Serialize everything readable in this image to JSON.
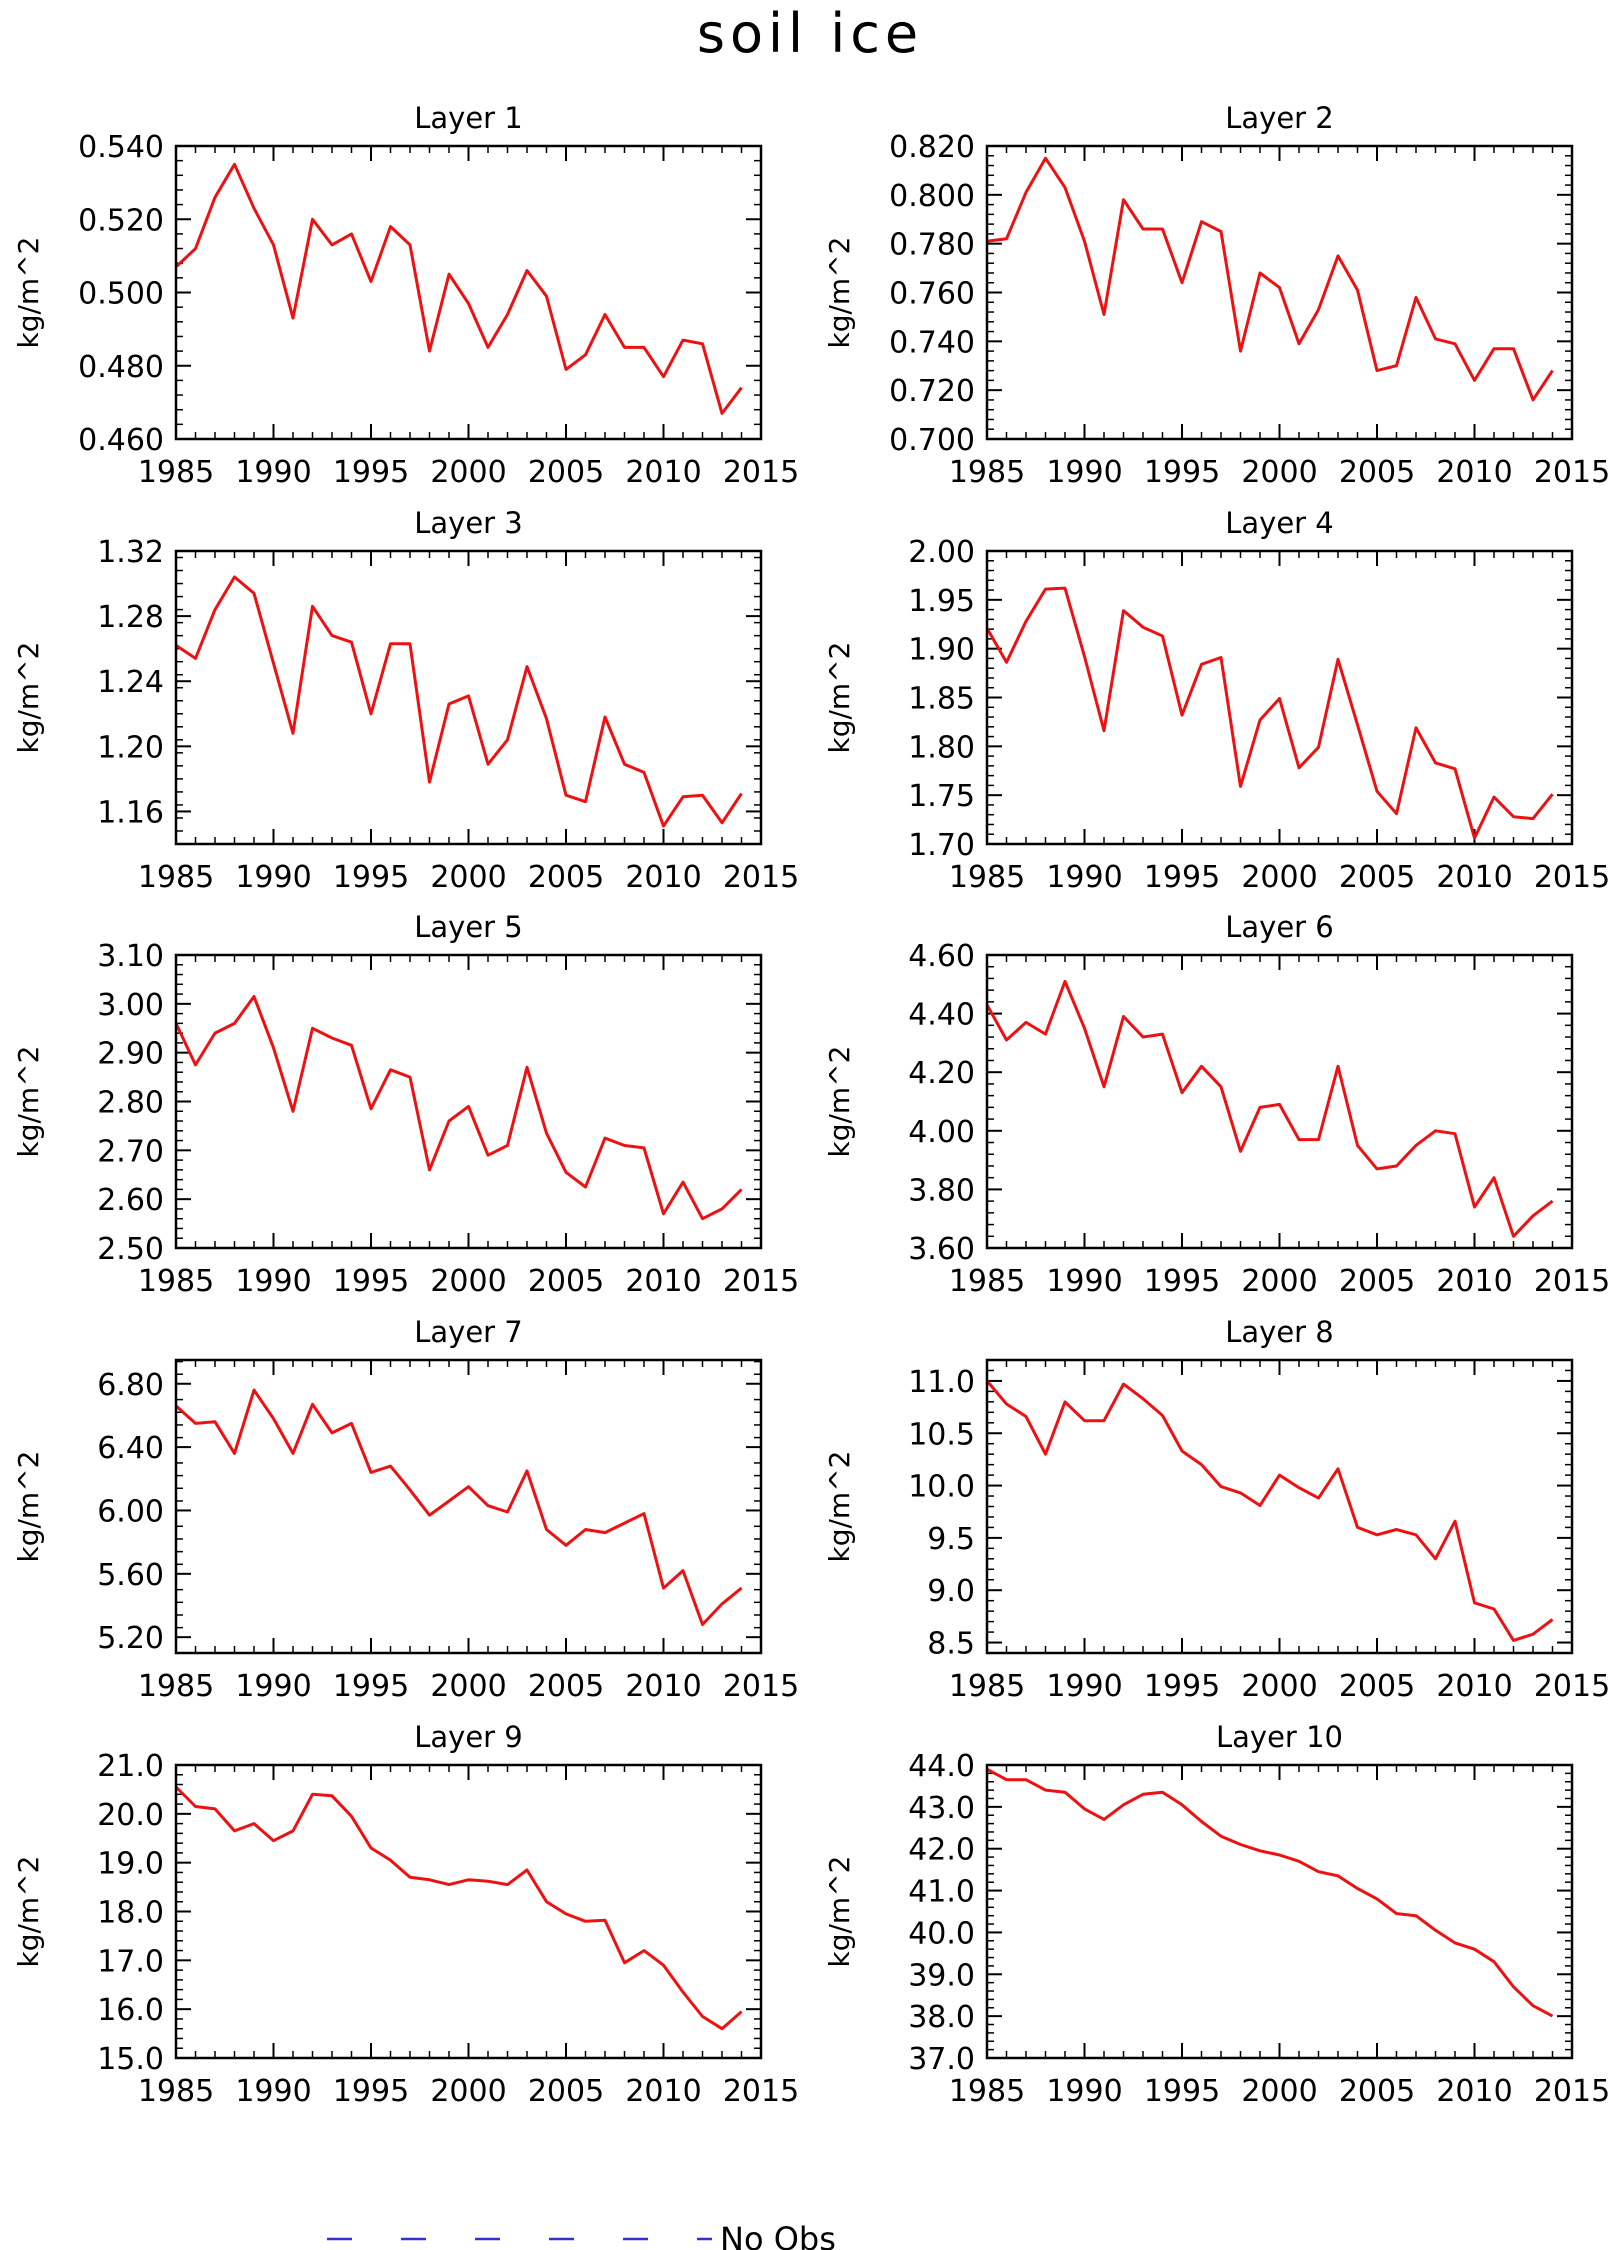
{
  "figure": {
    "title": "soil ice",
    "legend": {
      "label": "No Obs",
      "line_color": "#3333cc",
      "line_style": "dashed",
      "placement": "bottom-center"
    }
  },
  "colors": {
    "series": "#ee1111",
    "axis": "#000000"
  },
  "chart_data": [
    {
      "type": "line",
      "title": "Layer 1",
      "ylabel": "kg/m^2",
      "xlim": [
        1985,
        2015
      ],
      "ylim": [
        0.46,
        0.54
      ],
      "xticks": [
        "1985",
        "1990",
        "1995",
        "2000",
        "2005",
        "2010",
        "2015"
      ],
      "yticks": [
        "0.460",
        "0.480",
        "0.500",
        "0.520",
        "0.540"
      ],
      "x": [
        1985,
        1986,
        1987,
        1988,
        1989,
        1990,
        1991,
        1992,
        1993,
        1994,
        1995,
        1996,
        1997,
        1998,
        1999,
        2000,
        2001,
        2002,
        2003,
        2004,
        2005,
        2006,
        2007,
        2008,
        2009,
        2010,
        2011,
        2012,
        2013,
        2014
      ],
      "series": [
        {
          "values": [
            0.507,
            0.512,
            0.526,
            0.535,
            0.523,
            0.513,
            0.493,
            0.52,
            0.513,
            0.516,
            0.503,
            0.518,
            0.513,
            0.484,
            0.505,
            0.497,
            0.485,
            0.494,
            0.506,
            0.499,
            0.479,
            0.483,
            0.494,
            0.485,
            0.485,
            0.477,
            0.487,
            0.486,
            0.467,
            0.474
          ]
        }
      ]
    },
    {
      "type": "line",
      "title": "Layer 2",
      "ylabel": "kg/m^2",
      "xlim": [
        1985,
        2015
      ],
      "ylim": [
        0.7,
        0.82
      ],
      "xticks": [
        "1985",
        "1990",
        "1995",
        "2000",
        "2005",
        "2010",
        "2015"
      ],
      "yticks": [
        "0.700",
        "0.720",
        "0.740",
        "0.760",
        "0.780",
        "0.800",
        "0.820"
      ],
      "x": [
        1985,
        1986,
        1987,
        1988,
        1989,
        1990,
        1991,
        1992,
        1993,
        1994,
        1995,
        1996,
        1997,
        1998,
        1999,
        2000,
        2001,
        2002,
        2003,
        2004,
        2005,
        2006,
        2007,
        2008,
        2009,
        2010,
        2011,
        2012,
        2013,
        2014
      ],
      "series": [
        {
          "values": [
            0.781,
            0.782,
            0.801,
            0.815,
            0.803,
            0.781,
            0.751,
            0.798,
            0.786,
            0.786,
            0.764,
            0.789,
            0.785,
            0.736,
            0.768,
            0.762,
            0.739,
            0.753,
            0.775,
            0.761,
            0.728,
            0.73,
            0.758,
            0.741,
            0.739,
            0.724,
            0.737,
            0.737,
            0.716,
            0.728
          ]
        }
      ]
    },
    {
      "type": "line",
      "title": "Layer 3",
      "ylabel": "kg/m^2",
      "xlim": [
        1985,
        2015
      ],
      "ylim": [
        1.14,
        1.32
      ],
      "xticks": [
        "1985",
        "1990",
        "1995",
        "2000",
        "2005",
        "2010",
        "2015"
      ],
      "yticks": [
        "1.16",
        "1.20",
        "1.24",
        "1.28",
        "1.32"
      ],
      "x": [
        1985,
        1986,
        1987,
        1988,
        1989,
        1990,
        1991,
        1992,
        1993,
        1994,
        1995,
        1996,
        1997,
        1998,
        1999,
        2000,
        2001,
        2002,
        2003,
        2004,
        2005,
        2006,
        2007,
        2008,
        2009,
        2010,
        2011,
        2012,
        2013,
        2014
      ],
      "series": [
        {
          "values": [
            1.262,
            1.254,
            1.284,
            1.304,
            1.294,
            1.251,
            1.208,
            1.286,
            1.268,
            1.264,
            1.22,
            1.263,
            1.263,
            1.178,
            1.226,
            1.231,
            1.189,
            1.204,
            1.249,
            1.217,
            1.17,
            1.166,
            1.218,
            1.189,
            1.184,
            1.151,
            1.169,
            1.17,
            1.153,
            1.171
          ]
        }
      ]
    },
    {
      "type": "line",
      "title": "Layer 4",
      "ylabel": "kg/m^2",
      "xlim": [
        1985,
        2015
      ],
      "ylim": [
        1.7,
        2.0
      ],
      "xticks": [
        "1985",
        "1990",
        "1995",
        "2000",
        "2005",
        "2010",
        "2015"
      ],
      "yticks": [
        "1.70",
        "1.75",
        "1.80",
        "1.85",
        "1.90",
        "1.95",
        "2.00"
      ],
      "x": [
        1985,
        1986,
        1987,
        1988,
        1989,
        1990,
        1991,
        1992,
        1993,
        1994,
        1995,
        1996,
        1997,
        1998,
        1999,
        2000,
        2001,
        2002,
        2003,
        2004,
        2005,
        2006,
        2007,
        2008,
        2009,
        2010,
        2011,
        2012,
        2013,
        2014
      ],
      "series": [
        {
          "values": [
            1.921,
            1.886,
            1.928,
            1.961,
            1.962,
            1.892,
            1.816,
            1.939,
            1.922,
            1.913,
            1.832,
            1.884,
            1.891,
            1.759,
            1.827,
            1.849,
            1.778,
            1.799,
            1.889,
            1.822,
            1.754,
            1.731,
            1.819,
            1.783,
            1.777,
            1.706,
            1.748,
            1.728,
            1.726,
            1.751
          ]
        }
      ]
    },
    {
      "type": "line",
      "title": "Layer 5",
      "ylabel": "kg/m^2",
      "xlim": [
        1985,
        2015
      ],
      "ylim": [
        2.5,
        3.1
      ],
      "xticks": [
        "1985",
        "1990",
        "1995",
        "2000",
        "2005",
        "2010",
        "2015"
      ],
      "yticks": [
        "2.50",
        "2.60",
        "2.70",
        "2.80",
        "2.90",
        "3.00",
        "3.10"
      ],
      "x": [
        1985,
        1986,
        1987,
        1988,
        1989,
        1990,
        1991,
        1992,
        1993,
        1994,
        1995,
        1996,
        1997,
        1998,
        1999,
        2000,
        2001,
        2002,
        2003,
        2004,
        2005,
        2006,
        2007,
        2008,
        2009,
        2010,
        2011,
        2012,
        2013,
        2014
      ],
      "series": [
        {
          "values": [
            2.96,
            2.875,
            2.94,
            2.96,
            3.015,
            2.91,
            2.78,
            2.95,
            2.93,
            2.915,
            2.785,
            2.865,
            2.85,
            2.66,
            2.76,
            2.79,
            2.69,
            2.71,
            2.87,
            2.735,
            2.655,
            2.625,
            2.725,
            2.71,
            2.705,
            2.57,
            2.635,
            2.56,
            2.58,
            2.62
          ]
        }
      ]
    },
    {
      "type": "line",
      "title": "Layer 6",
      "ylabel": "kg/m^2",
      "xlim": [
        1985,
        2015
      ],
      "ylim": [
        3.6,
        4.6
      ],
      "xticks": [
        "1985",
        "1990",
        "1995",
        "2000",
        "2005",
        "2010",
        "2015"
      ],
      "yticks": [
        "3.60",
        "3.80",
        "4.00",
        "4.20",
        "4.40",
        "4.60"
      ],
      "x": [
        1985,
        1986,
        1987,
        1988,
        1989,
        1990,
        1991,
        1992,
        1993,
        1994,
        1995,
        1996,
        1997,
        1998,
        1999,
        2000,
        2001,
        2002,
        2003,
        2004,
        2005,
        2006,
        2007,
        2008,
        2009,
        2010,
        2011,
        2012,
        2013,
        2014
      ],
      "series": [
        {
          "values": [
            4.43,
            4.31,
            4.37,
            4.33,
            4.51,
            4.35,
            4.15,
            4.39,
            4.32,
            4.33,
            4.13,
            4.22,
            4.15,
            3.93,
            4.08,
            4.09,
            3.97,
            3.97,
            4.22,
            3.95,
            3.87,
            3.88,
            3.95,
            4.0,
            3.99,
            3.74,
            3.84,
            3.64,
            3.71,
            3.76
          ]
        }
      ]
    },
    {
      "type": "line",
      "title": "Layer 7",
      "ylabel": "kg/m^2",
      "xlim": [
        1985,
        2015
      ],
      "ylim": [
        5.1,
        6.95
      ],
      "xticks": [
        "1985",
        "1990",
        "1995",
        "2000",
        "2005",
        "2010",
        "2015"
      ],
      "yticks": [
        "5.20",
        "5.60",
        "6.00",
        "6.40",
        "6.80"
      ],
      "x": [
        1985,
        1986,
        1987,
        1988,
        1989,
        1990,
        1991,
        1992,
        1993,
        1994,
        1995,
        1996,
        1997,
        1998,
        1999,
        2000,
        2001,
        2002,
        2003,
        2004,
        2005,
        2006,
        2007,
        2008,
        2009,
        2010,
        2011,
        2012,
        2013,
        2014
      ],
      "series": [
        {
          "values": [
            6.66,
            6.55,
            6.56,
            6.36,
            6.76,
            6.58,
            6.36,
            6.67,
            6.49,
            6.55,
            6.24,
            6.28,
            6.13,
            5.97,
            6.06,
            6.15,
            6.03,
            5.99,
            6.25,
            5.88,
            5.78,
            5.88,
            5.86,
            5.92,
            5.98,
            5.51,
            5.62,
            5.28,
            5.41,
            5.51
          ]
        }
      ]
    },
    {
      "type": "line",
      "title": "Layer 8",
      "ylabel": "kg/m^2",
      "xlim": [
        1985,
        2015
      ],
      "ylim": [
        8.4,
        11.2
      ],
      "xticks": [
        "1985",
        "1990",
        "1995",
        "2000",
        "2005",
        "2010",
        "2015"
      ],
      "yticks": [
        "8.5",
        "9.0",
        "9.5",
        "10.0",
        "10.5",
        "11.0"
      ],
      "x": [
        1985,
        1986,
        1987,
        1988,
        1989,
        1990,
        1991,
        1992,
        1993,
        1994,
        1995,
        1996,
        1997,
        1998,
        1999,
        2000,
        2001,
        2002,
        2003,
        2004,
        2005,
        2006,
        2007,
        2008,
        2009,
        2010,
        2011,
        2012,
        2013,
        2014
      ],
      "series": [
        {
          "values": [
            11.0,
            10.78,
            10.66,
            10.3,
            10.8,
            10.62,
            10.62,
            10.97,
            10.83,
            10.67,
            10.33,
            10.2,
            9.99,
            9.93,
            9.81,
            10.1,
            9.98,
            9.88,
            10.16,
            9.6,
            9.53,
            9.58,
            9.53,
            9.3,
            9.66,
            8.88,
            8.82,
            8.52,
            8.58,
            8.72
          ]
        }
      ]
    },
    {
      "type": "line",
      "title": "Layer 9",
      "ylabel": "kg/m^2",
      "xlim": [
        1985,
        2015
      ],
      "ylim": [
        15.0,
        21.0
      ],
      "xticks": [
        "1985",
        "1990",
        "1995",
        "2000",
        "2005",
        "2010",
        "2015"
      ],
      "yticks": [
        "15.0",
        "16.0",
        "17.0",
        "18.0",
        "19.0",
        "20.0",
        "21.0"
      ],
      "x": [
        1985,
        1986,
        1987,
        1988,
        1989,
        1990,
        1991,
        1992,
        1993,
        1994,
        1995,
        1996,
        1997,
        1998,
        1999,
        2000,
        2001,
        2002,
        2003,
        2004,
        2005,
        2006,
        2007,
        2008,
        2009,
        2010,
        2011,
        2012,
        2013,
        2014
      ],
      "series": [
        {
          "values": [
            20.55,
            20.15,
            20.1,
            19.65,
            19.8,
            19.45,
            19.65,
            20.4,
            20.37,
            19.95,
            19.3,
            19.05,
            18.7,
            18.65,
            18.55,
            18.65,
            18.62,
            18.55,
            18.85,
            18.2,
            17.95,
            17.8,
            17.82,
            16.95,
            17.2,
            16.9,
            16.35,
            15.85,
            15.6,
            15.95
          ]
        }
      ]
    },
    {
      "type": "line",
      "title": "Layer 10",
      "ylabel": "kg/m^2",
      "xlim": [
        1985,
        2015
      ],
      "ylim": [
        37.0,
        44.0
      ],
      "xticks": [
        "1985",
        "1990",
        "1995",
        "2000",
        "2005",
        "2010",
        "2015"
      ],
      "yticks": [
        "37.0",
        "38.0",
        "39.0",
        "40.0",
        "41.0",
        "42.0",
        "43.0",
        "44.0"
      ],
      "x": [
        1985,
        1986,
        1987,
        1988,
        1989,
        1990,
        1991,
        1992,
        1993,
        1994,
        1995,
        1996,
        1997,
        1998,
        1999,
        2000,
        2001,
        2002,
        2003,
        2004,
        2005,
        2006,
        2007,
        2008,
        2009,
        2010,
        2011,
        2012,
        2013,
        2014
      ],
      "series": [
        {
          "values": [
            43.9,
            43.65,
            43.65,
            43.4,
            43.35,
            42.95,
            42.7,
            43.05,
            43.3,
            43.35,
            43.05,
            42.65,
            42.3,
            42.1,
            41.95,
            41.85,
            41.7,
            41.45,
            41.35,
            41.05,
            40.8,
            40.45,
            40.4,
            40.05,
            39.75,
            39.6,
            39.3,
            38.7,
            38.25,
            38.0
          ]
        }
      ]
    }
  ]
}
